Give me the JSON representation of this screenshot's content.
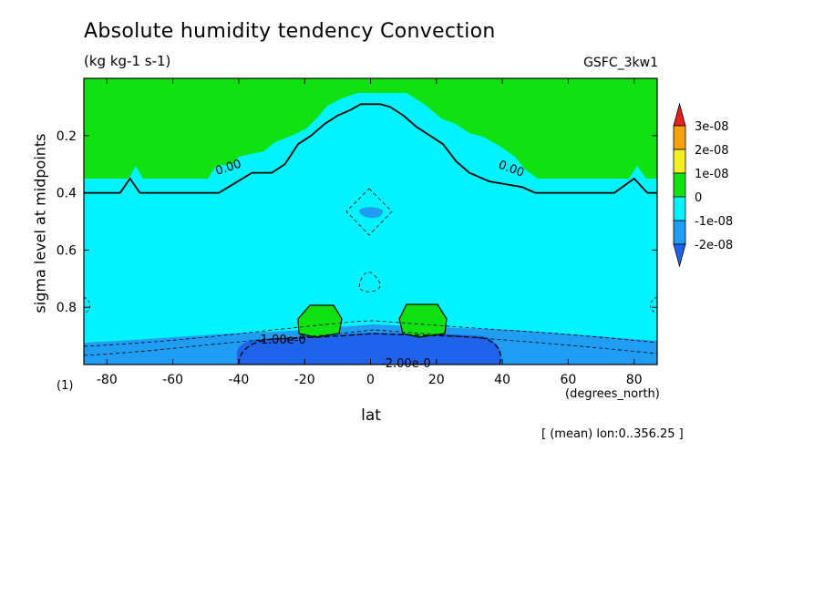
{
  "header": {
    "title": "Absolute humidity tendency Convection",
    "units": "(kg kg-1 s-1)",
    "model": "GSFC_3kw1",
    "page_index": "(1)",
    "averaging_note": "[ (mean) lon:0..356.25 ]"
  },
  "chart_data": {
    "type": "heatmap",
    "title": "Absolute humidity tendency Convection",
    "subtitle": "(kg kg-1 s-1)",
    "xlabel": "lat",
    "xunits": "(degrees_north)",
    "ylabel": "sigma level at midpoints",
    "xlim": [
      -87,
      87
    ],
    "ylim": [
      1.0,
      0.0
    ],
    "x_ticks": [
      -80,
      -60,
      -40,
      -20,
      0,
      20,
      40,
      60,
      80
    ],
    "x_tick_labels": [
      "-80",
      "-60",
      "-40",
      "-20",
      "0",
      "20",
      "40",
      "60",
      "80"
    ],
    "y_ticks": [
      0.2,
      0.4,
      0.6,
      0.8
    ],
    "y_tick_labels": [
      "0.2",
      "0.4",
      "0.6",
      "0.8"
    ],
    "colorbar": {
      "levels": [
        -2e-08,
        -1e-08,
        0,
        1e-08,
        2e-08,
        3e-08
      ],
      "labels": [
        "-2e-08",
        "-1e-08",
        "0",
        "1e-08",
        "2e-08",
        "3e-08"
      ],
      "colors": [
        "#1d63ec",
        "#1f9df2",
        "#00f3ff",
        "#10e110",
        "#f3ef20",
        "#f7a20a",
        "#e81f1f"
      ]
    },
    "zero_contour": {
      "x": [
        -87,
        -80,
        -76,
        -73,
        -70,
        -60,
        -52,
        -46,
        -36,
        -30,
        -26,
        -22,
        -18,
        -14,
        -10,
        -6,
        -3,
        3,
        6,
        10,
        14,
        18,
        22,
        26,
        30,
        36,
        46,
        50,
        60,
        70,
        74,
        80,
        84,
        87
      ],
      "y": [
        0.4,
        0.4,
        0.4,
        0.35,
        0.4,
        0.4,
        0.4,
        0.4,
        0.33,
        0.33,
        0.3,
        0.23,
        0.2,
        0.16,
        0.13,
        0.11,
        0.09,
        0.09,
        0.1,
        0.13,
        0.17,
        0.2,
        0.23,
        0.29,
        0.33,
        0.36,
        0.38,
        0.4,
        0.4,
        0.4,
        0.4,
        0.35,
        0.4,
        0.4
      ],
      "label": "0.00"
    },
    "positive_cells": [
      {
        "center_lat": -16,
        "center_sigma": 0.85
      },
      {
        "center_lat": 16,
        "center_sigma": 0.86
      }
    ],
    "negative_cells": [
      {
        "center_lat": 1,
        "center_sigma": 0.46
      }
    ],
    "contour_labels": [
      "0.00",
      "0.00",
      "-1.00e-0",
      "-2.00e-0"
    ]
  }
}
